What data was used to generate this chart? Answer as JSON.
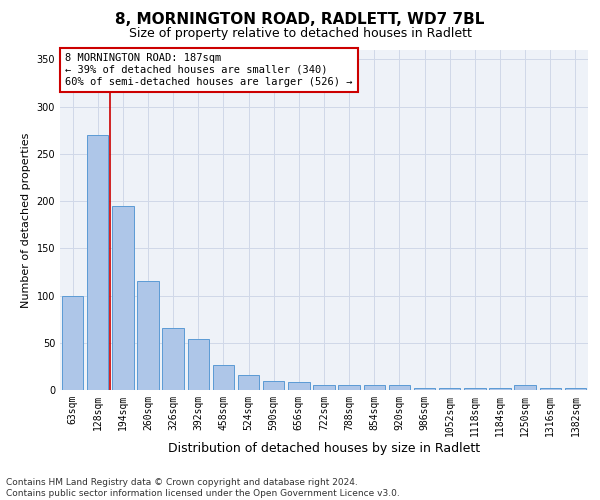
{
  "title1": "8, MORNINGTON ROAD, RADLETT, WD7 7BL",
  "title2": "Size of property relative to detached houses in Radlett",
  "xlabel": "Distribution of detached houses by size in Radlett",
  "ylabel": "Number of detached properties",
  "categories": [
    "63sqm",
    "128sqm",
    "194sqm",
    "260sqm",
    "326sqm",
    "392sqm",
    "458sqm",
    "524sqm",
    "590sqm",
    "656sqm",
    "722sqm",
    "788sqm",
    "854sqm",
    "920sqm",
    "986sqm",
    "1052sqm",
    "1118sqm",
    "1184sqm",
    "1250sqm",
    "1316sqm",
    "1382sqm"
  ],
  "values": [
    100,
    270,
    195,
    115,
    66,
    54,
    27,
    16,
    10,
    9,
    5,
    5,
    5,
    5,
    2,
    2,
    2,
    2,
    5,
    2,
    2
  ],
  "bar_color": "#aec6e8",
  "bar_edge_color": "#5b9bd5",
  "grid_color": "#d0d8e8",
  "background_color": "#eef2f8",
  "vline_color": "#cc0000",
  "vline_x": 1.5,
  "annotation_text": "8 MORNINGTON ROAD: 187sqm\n← 39% of detached houses are smaller (340)\n60% of semi-detached houses are larger (526) →",
  "annotation_box_color": "#ffffff",
  "annotation_box_edge_color": "#cc0000",
  "ylim": [
    0,
    360
  ],
  "yticks": [
    0,
    50,
    100,
    150,
    200,
    250,
    300,
    350
  ],
  "footnote": "Contains HM Land Registry data © Crown copyright and database right 2024.\nContains public sector information licensed under the Open Government Licence v3.0.",
  "title1_fontsize": 11,
  "title2_fontsize": 9,
  "xlabel_fontsize": 9,
  "ylabel_fontsize": 8,
  "tick_fontsize": 7,
  "annotation_fontsize": 7.5,
  "footnote_fontsize": 6.5
}
